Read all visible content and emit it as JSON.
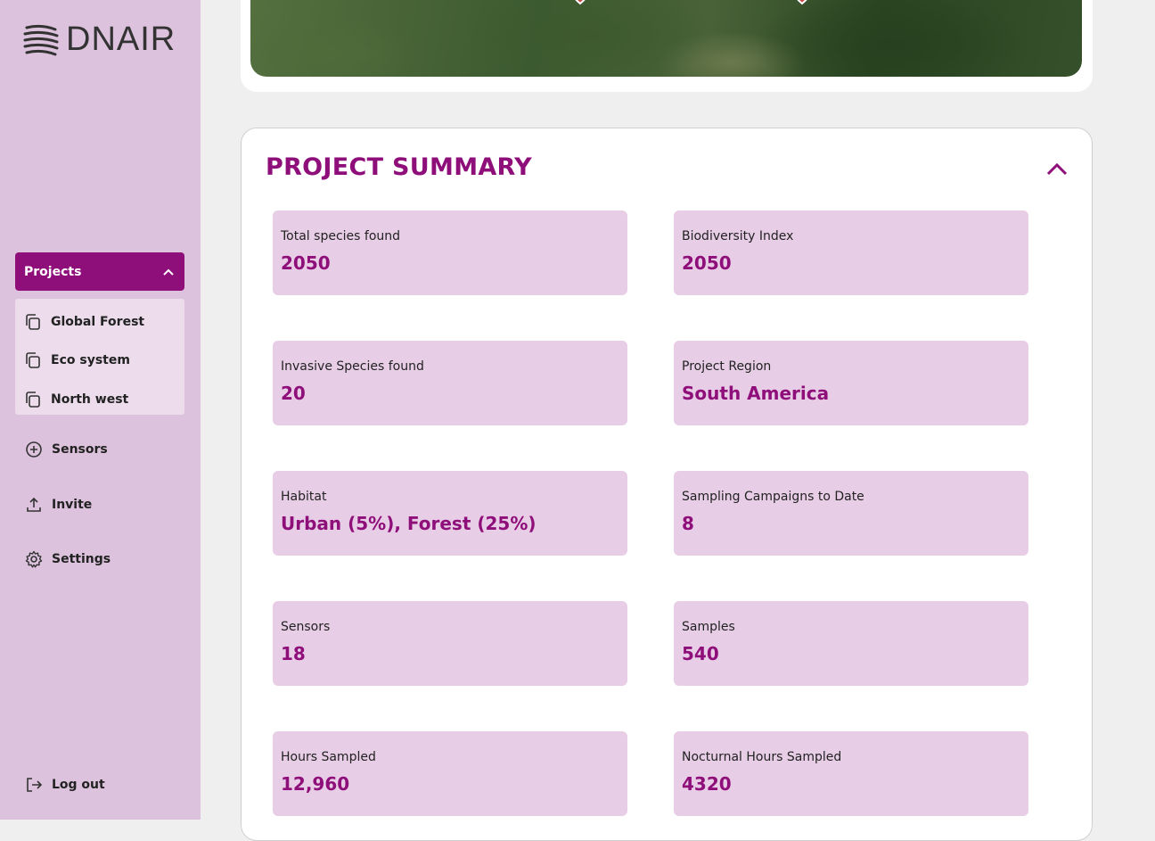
{
  "brand": {
    "name": "DNAIR"
  },
  "sidebar": {
    "projects_label": "Projects",
    "projects": [
      {
        "label": "Global Forest"
      },
      {
        "label": "Eco system"
      },
      {
        "label": "North west"
      }
    ],
    "nav": [
      {
        "label": "Sensors",
        "icon": "plus-circle-icon"
      },
      {
        "label": "Invite",
        "icon": "upload-icon"
      },
      {
        "label": "Settings",
        "icon": "gear-icon"
      }
    ],
    "logout_label": "Log out"
  },
  "summary": {
    "title": "PROJECT SUMMARY",
    "stats": [
      {
        "label": "Total species found",
        "value": "2050"
      },
      {
        "label": "Biodiversity Index",
        "value": "2050"
      },
      {
        "label": "Invasive Species found",
        "value": "20"
      },
      {
        "label": "Project Region",
        "value": "South America"
      },
      {
        "label": "Habitat",
        "value": "Urban (5%), Forest (25%)"
      },
      {
        "label": "Sampling Campaigns to Date",
        "value": "8"
      },
      {
        "label": "Sensors",
        "value": "18"
      },
      {
        "label": "Samples",
        "value": "540"
      },
      {
        "label": "Hours Sampled",
        "value": "12,960"
      },
      {
        "label": "Nocturnal Hours Sampled",
        "value": "4320"
      }
    ]
  },
  "colors": {
    "accent": "#8f0f7a",
    "sidebar_bg": "#dcc2dc",
    "card_bg": "#e8cde6"
  }
}
